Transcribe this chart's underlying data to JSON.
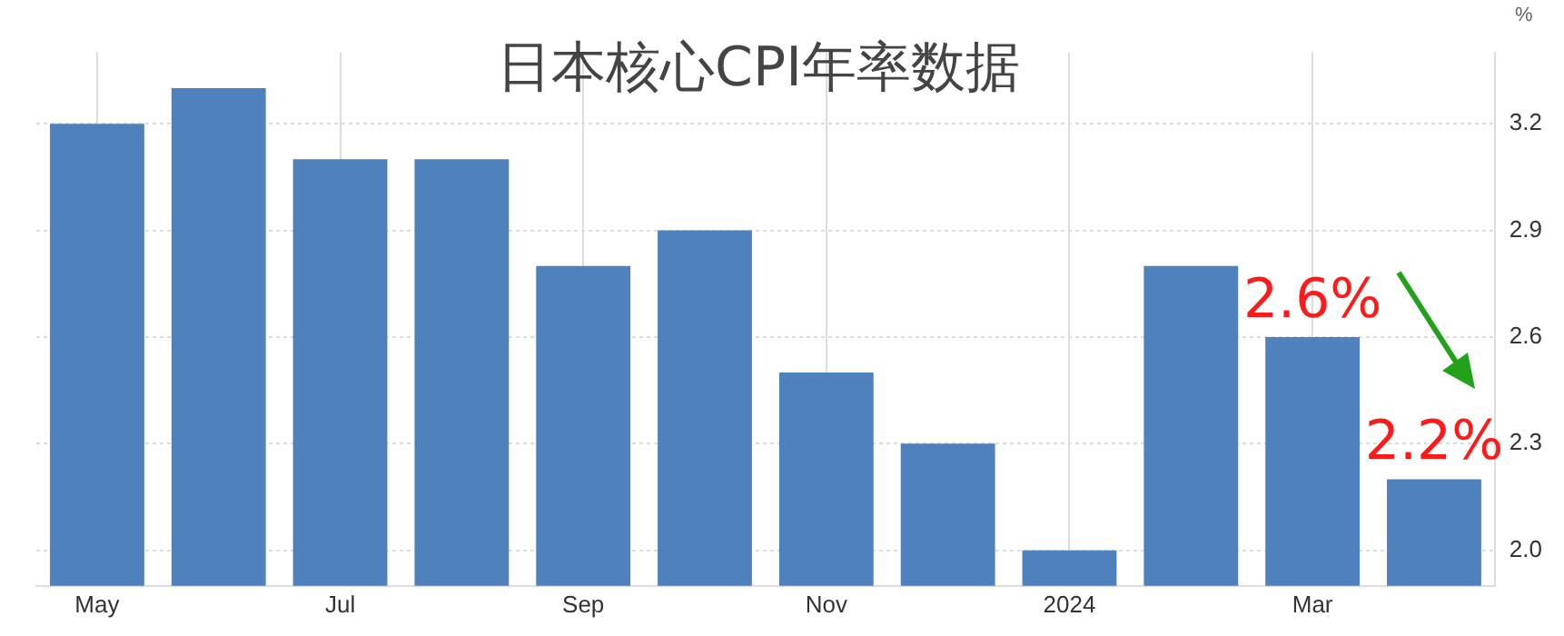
{
  "chart_data": {
    "type": "bar",
    "title": "日本核心CPI年率数据",
    "ylabel": "%",
    "categories": [
      "May",
      null,
      "Jul",
      null,
      "Sep",
      null,
      "Nov",
      null,
      "2024",
      null,
      "Mar",
      null
    ],
    "values": [
      3.2,
      3.3,
      3.1,
      3.1,
      2.8,
      2.9,
      2.5,
      2.3,
      2.0,
      2.8,
      2.6,
      2.2
    ],
    "value_labels": [
      null,
      null,
      null,
      null,
      null,
      null,
      null,
      null,
      null,
      null,
      "2.6%",
      "2.2%"
    ],
    "color": "#4f81bd",
    "ylim": [
      1.9,
      3.4
    ],
    "yticks": [
      {
        "value": 2,
        "label": "2.0"
      },
      2.3,
      2.6,
      2.9,
      3.2
    ],
    "grid": true
  }
}
